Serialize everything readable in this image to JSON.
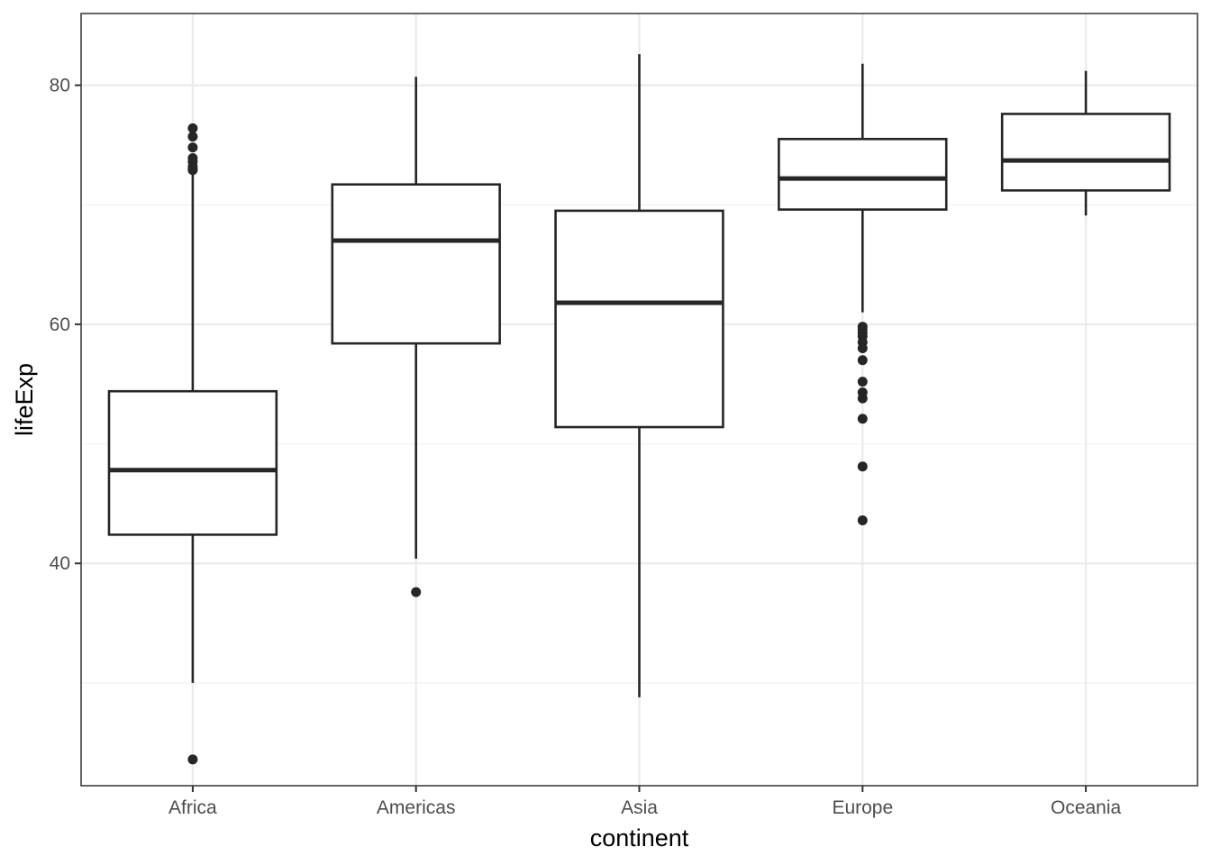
{
  "chart_data": {
    "type": "boxplot",
    "xlabel": "continent",
    "ylabel": "lifeExp",
    "ylim": [
      21.4,
      86.0
    ],
    "y_ticks": [
      40,
      60,
      80
    ],
    "y_minor_ticks": [
      30,
      50,
      70
    ],
    "grid": true,
    "theme": "bw",
    "categories": [
      "Africa",
      "Americas",
      "Asia",
      "Europe",
      "Oceania"
    ],
    "boxes": [
      {
        "category": "Africa",
        "whisker_low": 30.0,
        "q1": 42.4,
        "median": 47.8,
        "q3": 54.4,
        "whisker_high": 72.8,
        "outliers": [
          23.6,
          72.9,
          73.0,
          73.2,
          73.6,
          73.9,
          74.8,
          75.7,
          76.4
        ]
      },
      {
        "category": "Americas",
        "whisker_low": 40.4,
        "q1": 58.4,
        "median": 67.0,
        "q3": 71.7,
        "whisker_high": 80.7,
        "outliers": [
          37.6
        ]
      },
      {
        "category": "Asia",
        "whisker_low": 28.8,
        "q1": 51.4,
        "median": 61.8,
        "q3": 69.5,
        "whisker_high": 82.6,
        "outliers": []
      },
      {
        "category": "Europe",
        "whisker_low": 61.0,
        "q1": 69.6,
        "median": 72.2,
        "q3": 75.5,
        "whisker_high": 81.8,
        "outliers": [
          43.6,
          48.1,
          52.1,
          53.8,
          54.3,
          55.2,
          57.0,
          58.0,
          58.5,
          59.0,
          59.3,
          59.6,
          59.8
        ]
      },
      {
        "category": "Oceania",
        "whisker_low": 69.1,
        "q1": 71.2,
        "median": 73.7,
        "q3": 77.6,
        "whisker_high": 81.2,
        "outliers": []
      }
    ],
    "colors": {
      "box_stroke": "#262626",
      "grid_major": "#ebebeb",
      "grid_minor": "#f2f2f2",
      "panel_border": "#333333",
      "background": "#ffffff"
    }
  }
}
